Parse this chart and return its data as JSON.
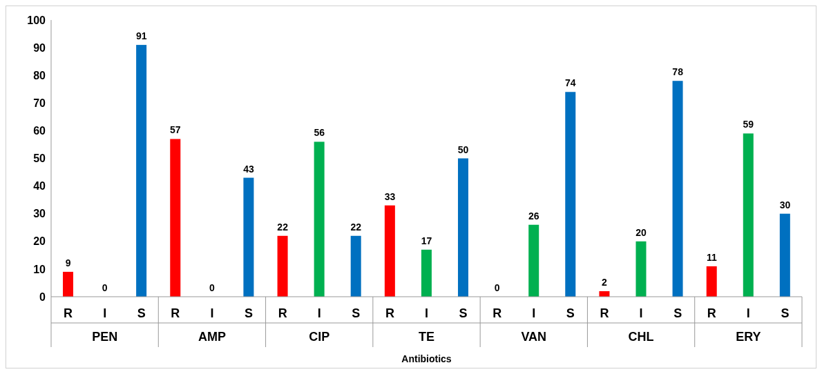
{
  "chart_data": {
    "type": "bar",
    "xlabel": "Antibiotics",
    "categories": [
      "PEN",
      "AMP",
      "CIP",
      "TE",
      "VAN",
      "CHL",
      "ERY"
    ],
    "series": [
      {
        "name": "R",
        "color": "#ff0000",
        "values": [
          9,
          57,
          22,
          33,
          0,
          2,
          11
        ]
      },
      {
        "name": "I",
        "color": "#00b050",
        "values": [
          0,
          0,
          56,
          17,
          26,
          20,
          59
        ]
      },
      {
        "name": "S",
        "color": "#0070c0",
        "values": [
          91,
          43,
          22,
          50,
          74,
          78,
          30
        ]
      }
    ],
    "ylim": [
      0,
      100
    ],
    "yticks": [
      0,
      10,
      20,
      30,
      40,
      50,
      60,
      70,
      80,
      90,
      100
    ],
    "data_labels": true
  }
}
